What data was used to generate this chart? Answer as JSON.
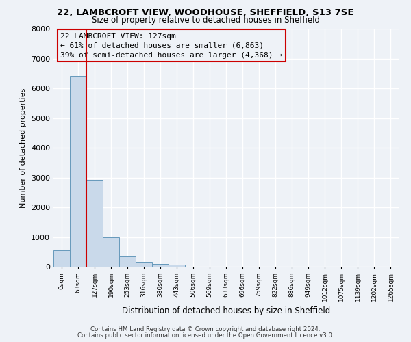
{
  "title_line1": "22, LAMBCROFT VIEW, WOODHOUSE, SHEFFIELD, S13 7SE",
  "title_line2": "Size of property relative to detached houses in Sheffield",
  "xlabel": "Distribution of detached houses by size in Sheffield",
  "ylabel": "Number of detached properties",
  "bar_color": "#c9d9ea",
  "bar_edge_color": "#6699bb",
  "categories": [
    "0sqm",
    "63sqm",
    "127sqm",
    "190sqm",
    "253sqm",
    "316sqm",
    "380sqm",
    "443sqm",
    "506sqm",
    "569sqm",
    "633sqm",
    "696sqm",
    "759sqm",
    "822sqm",
    "886sqm",
    "949sqm",
    "1012sqm",
    "1075sqm",
    "1139sqm",
    "1202sqm",
    "1265sqm"
  ],
  "values": [
    560,
    6430,
    2920,
    990,
    360,
    160,
    100,
    70,
    0,
    0,
    0,
    0,
    0,
    0,
    0,
    0,
    0,
    0,
    0,
    0,
    0
  ],
  "ylim": [
    0,
    8000
  ],
  "yticks": [
    0,
    1000,
    2000,
    3000,
    4000,
    5000,
    6000,
    7000,
    8000
  ],
  "vline_x": 1.5,
  "vline_color": "#cc0000",
  "annotation_text": "22 LAMBCROFT VIEW: 127sqm\n← 61% of detached houses are smaller (6,863)\n39% of semi-detached houses are larger (4,368) →",
  "annotation_box_color": "#cc0000",
  "footnote_line1": "Contains HM Land Registry data © Crown copyright and database right 2024.",
  "footnote_line2": "Contains public sector information licensed under the Open Government Licence v3.0.",
  "background_color": "#eef2f7",
  "grid_color": "#ffffff"
}
